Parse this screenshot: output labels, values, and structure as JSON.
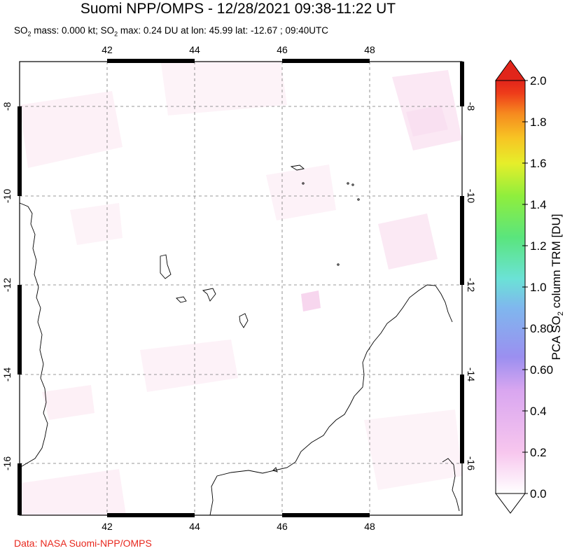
{
  "header": {
    "title": "Suomi NPP/OMPS - 12/28/2021 09:38-11:22 UT",
    "subtitle_prefix": "SO",
    "subtitle_mass": " mass: 0.000 kt; SO",
    "subtitle_rest": " max: 0.24 DU at lon: 45.99 lat: -12.67 ; 09:40UTC",
    "sub2": "2"
  },
  "map": {
    "lon_ticks": [
      "42",
      "44",
      "46",
      "48"
    ],
    "lat_ticks": [
      "-8",
      "-10",
      "-12",
      "-14",
      "-16"
    ],
    "lon_range": [
      40,
      50
    ],
    "lat_range": [
      -17.2,
      -7
    ]
  },
  "colorbar": {
    "label": "PCA SO",
    "label_sub": "2",
    "label_rest": " column TRM [DU]",
    "ticks": [
      "2.0",
      "1.8",
      "1.6",
      "1.4",
      "1.2",
      "1.0",
      "0.80",
      "0.60",
      "0.4",
      "0.2",
      "0.0"
    ],
    "colors": [
      "#ffffff",
      "#f7c6ee",
      "#d9a6f0",
      "#9b8ff0",
      "#7fb7ee",
      "#6be2d6",
      "#5ae57d",
      "#8fee3d",
      "#e6ee2a",
      "#f7c524",
      "#f68a1f",
      "#ee3b1a",
      "#e1251b"
    ]
  },
  "credit": "Data: NASA Suomi-NPP/OMPS"
}
